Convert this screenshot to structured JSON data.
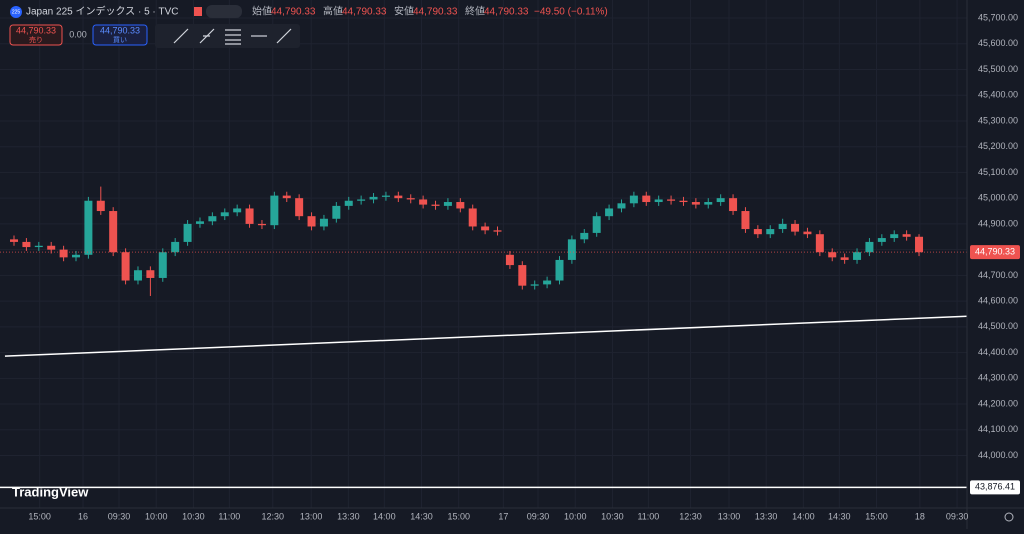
{
  "header": {
    "symbol_badge": "225",
    "title": "Japan 225 インデックス · 5 · TVC",
    "ohlc": [
      {
        "label": "始値",
        "value": "44,790.33"
      },
      {
        "label": "高値",
        "value": "44,790.33"
      },
      {
        "label": "安値",
        "value": "44,790.33"
      },
      {
        "label": "終値",
        "value": "44,790.33"
      }
    ],
    "change": "−49.50 (−0.11%)"
  },
  "trade": {
    "sell_price": "44,790.33",
    "sell_label": "売り",
    "spread": "0.00",
    "buy_price": "44,790.33",
    "buy_label": "買い"
  },
  "watermark": "TradingView",
  "chart_data": {
    "type": "candlestick",
    "up_color": "#26a69a",
    "down_color": "#ef5350",
    "open": [
      44840,
      44830,
      44810,
      44815,
      44800,
      44770,
      44780,
      44990,
      44950,
      44790,
      44680,
      44720,
      44690,
      44790,
      44830,
      44900,
      44910,
      44930,
      44945,
      44960,
      44900,
      44895,
      45010,
      45000,
      44930,
      44890,
      44920,
      44970,
      44990,
      44995,
      45005,
      45010,
      45000,
      44995,
      44975,
      44970,
      44985,
      44960,
      44890,
      44875,
      44780,
      44740,
      44660,
      44665,
      44680,
      44760,
      44840,
      44865,
      44930,
      44960,
      44980,
      45010,
      44985,
      44995,
      44990,
      44985,
      44975,
      44985,
      45000,
      44950,
      44880,
      44860,
      44880,
      44900,
      44870,
      44860,
      44790,
      44770,
      44760,
      44790,
      44830,
      44845,
      44860,
      44850
    ],
    "high": [
      44855,
      44845,
      44830,
      44830,
      44815,
      44795,
      45005,
      45045,
      44965,
      44805,
      44735,
      44735,
      44805,
      44845,
      44915,
      44925,
      44945,
      44960,
      44975,
      44975,
      44915,
      45025,
      45025,
      45015,
      44945,
      44935,
      44985,
      45005,
      45010,
      45020,
      45025,
      45025,
      45015,
      45010,
      44990,
      45000,
      45000,
      44975,
      44905,
      44890,
      44795,
      44755,
      44680,
      44695,
      44775,
      44855,
      44880,
      44945,
      44975,
      44995,
      45025,
      45025,
      45010,
      45010,
      45005,
      45000,
      45000,
      45015,
      45015,
      44965,
      44895,
      44895,
      44920,
      44915,
      44885,
      44875,
      44805,
      44785,
      44805,
      44845,
      44860,
      44875,
      44875,
      44860
    ],
    "low": [
      44815,
      44795,
      44795,
      44785,
      44755,
      44755,
      44765,
      44935,
      44775,
      44665,
      44665,
      44620,
      44675,
      44775,
      44815,
      44885,
      44895,
      44915,
      44930,
      44885,
      44880,
      44880,
      44985,
      44915,
      44875,
      44875,
      44905,
      44955,
      44975,
      44980,
      44990,
      44985,
      44980,
      44960,
      44955,
      44955,
      44945,
      44875,
      44860,
      44855,
      44725,
      44645,
      44645,
      44650,
      44665,
      44745,
      44825,
      44850,
      44915,
      44945,
      44965,
      44970,
      44970,
      44975,
      44970,
      44960,
      44960,
      44970,
      44935,
      44865,
      44845,
      44845,
      44865,
      44855,
      44845,
      44775,
      44755,
      44745,
      44745,
      44775,
      44815,
      44830,
      44835,
      44775
    ],
    "close": [
      44830,
      44810,
      44815,
      44800,
      44770,
      44780,
      44990,
      44950,
      44790,
      44680,
      44720,
      44690,
      44790,
      44830,
      44900,
      44910,
      44930,
      44945,
      44960,
      44900,
      44895,
      45010,
      45000,
      44930,
      44890,
      44920,
      44970,
      44990,
      44995,
      45005,
      45010,
      45000,
      44995,
      44975,
      44970,
      44985,
      44960,
      44890,
      44875,
      44870,
      44740,
      44660,
      44665,
      44680,
      44760,
      44840,
      44865,
      44930,
      44960,
      44980,
      45010,
      44985,
      44995,
      44990,
      44985,
      44975,
      44985,
      45000,
      44950,
      44880,
      44860,
      44880,
      44900,
      44870,
      44860,
      44790,
      44770,
      44760,
      44790,
      44830,
      44845,
      44860,
      44850,
      44790
    ],
    "xlim": [
      0,
      78
    ],
    "ylim": [
      43800,
      45770
    ],
    "xticks": [
      {
        "value": 3.2,
        "label": "15:00"
      },
      {
        "value": 6.7,
        "label": "16"
      },
      {
        "value": 9.6,
        "label": "09:30"
      },
      {
        "value": 12.6,
        "label": "10:00"
      },
      {
        "value": 15.6,
        "label": "10:30"
      },
      {
        "value": 18.5,
        "label": "11:00"
      },
      {
        "value": 22,
        "label": "12:30"
      },
      {
        "value": 25.1,
        "label": "13:00"
      },
      {
        "value": 28.1,
        "label": "13:30"
      },
      {
        "value": 31,
        "label": "14:00"
      },
      {
        "value": 34,
        "label": "14:30"
      },
      {
        "value": 37,
        "label": "15:00"
      },
      {
        "value": 40.6,
        "label": "17"
      },
      {
        "value": 43.4,
        "label": "09:30"
      },
      {
        "value": 46.4,
        "label": "10:00"
      },
      {
        "value": 49.4,
        "label": "10:30"
      },
      {
        "value": 52.3,
        "label": "11:00"
      },
      {
        "value": 55.7,
        "label": "12:30"
      },
      {
        "value": 58.8,
        "label": "13:00"
      },
      {
        "value": 61.8,
        "label": "13:30"
      },
      {
        "value": 64.8,
        "label": "14:00"
      },
      {
        "value": 67.7,
        "label": "14:30"
      },
      {
        "value": 70.7,
        "label": "15:00"
      },
      {
        "value": 74.2,
        "label": "18"
      },
      {
        "value": 77.2,
        "label": "09:30"
      }
    ],
    "yticks": [
      {
        "value": 45700,
        "label": "45,700.00"
      },
      {
        "value": 45600,
        "label": "45,600.00"
      },
      {
        "value": 45500,
        "label": "45,500.00"
      },
      {
        "value": 45400,
        "label": "45,400.00"
      },
      {
        "value": 45300,
        "label": "45,300.00"
      },
      {
        "value": 45200,
        "label": "45,200.00"
      },
      {
        "value": 45100,
        "label": "45,100.00"
      },
      {
        "value": 45000,
        "label": "45,000.00"
      },
      {
        "value": 44900,
        "label": "44,900.00"
      },
      {
        "value": 44800,
        "label": "44,800.00"
      },
      {
        "value": 44700,
        "label": "44,700.00"
      },
      {
        "value": 44600,
        "label": "44,600.00"
      },
      {
        "value": 44500,
        "label": "44,500.00"
      },
      {
        "value": 44400,
        "label": "44,400.00"
      },
      {
        "value": 44300,
        "label": "44,300.00"
      },
      {
        "value": 44200,
        "label": "44,200.00"
      },
      {
        "value": 44100,
        "label": "44,100.00"
      },
      {
        "value": 44000,
        "label": "44,000.00"
      }
    ],
    "trend_line": {
      "x": [
        0.4,
        78
      ],
      "y": [
        44386,
        44541
      ],
      "color": "#ffffff"
    },
    "last_price": {
      "value": 44790.33,
      "label": "44,790.33",
      "color": "#ef5350"
    },
    "price_line": {
      "value": 43876.41,
      "label": "43,876.41",
      "color": "#ffffff"
    }
  }
}
